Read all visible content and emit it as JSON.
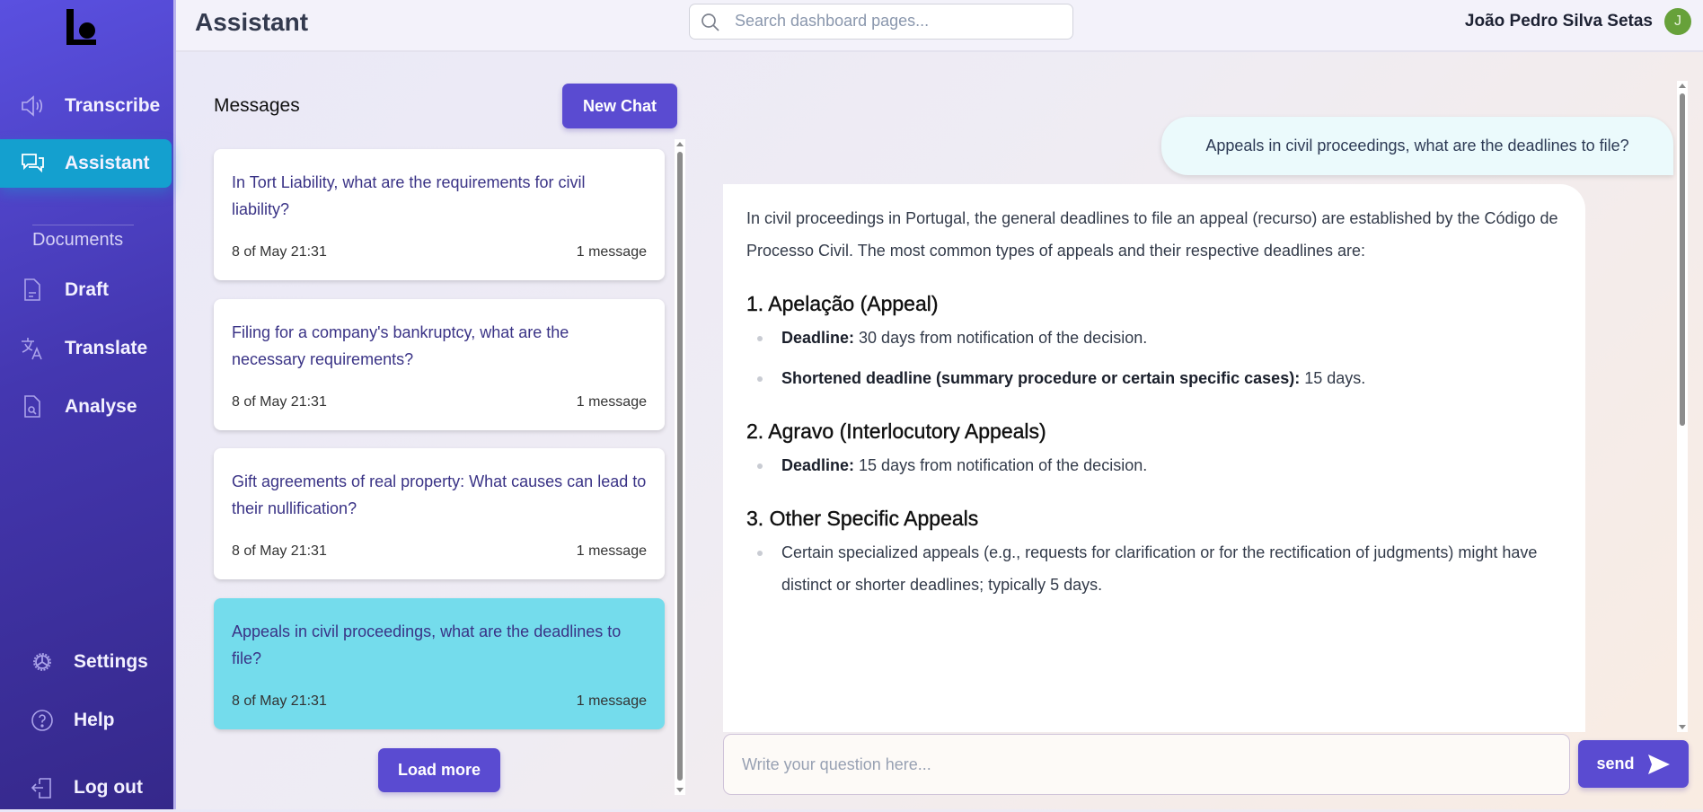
{
  "sidebar": {
    "logo": "lo",
    "items": [
      {
        "label": "Transcribe",
        "icon": "speaker-icon"
      },
      {
        "label": "Assistant",
        "icon": "chat-bubbles-icon",
        "active": true
      },
      {
        "label": "Draft",
        "icon": "document-icon"
      },
      {
        "label": "Translate",
        "icon": "translate-icon"
      },
      {
        "label": "Analyse",
        "icon": "document-search-icon"
      }
    ],
    "section_label": "Documents",
    "bottom": [
      {
        "label": "Settings",
        "icon": "gear-icon"
      },
      {
        "label": "Help",
        "icon": "help-circle-icon"
      },
      {
        "label": "Log out",
        "icon": "logout-icon"
      }
    ]
  },
  "header": {
    "title": "Assistant",
    "search_placeholder": "Search dashboard pages...",
    "user_name": "João Pedro Silva Setas",
    "avatar_initial": "J",
    "avatar_color": "#67a13a"
  },
  "messages": {
    "title": "Messages",
    "new_chat": "New Chat",
    "load_more": "Load more",
    "items": [
      {
        "question": "In Tort Liability, what are the requirements for civil liability?",
        "date": "8 of May 21:31",
        "count": "1 message"
      },
      {
        "question": "Filing for a company's bankruptcy, what are the necessary requirements?",
        "date": "8 of May 21:31",
        "count": "1 message"
      },
      {
        "question": "Gift agreements of real property: What causes can lead to their nullification?",
        "date": "8 of May 21:31",
        "count": "1 message"
      },
      {
        "question": "Appeals in civil proceedings, what are the deadlines to file?",
        "date": "8 of May 21:31",
        "count": "1 message",
        "selected": true
      }
    ]
  },
  "chat": {
    "user_message": "Appeals in civil proceedings, what are the deadlines to file?",
    "answer": {
      "intro": "In civil proceedings in Portugal, the general deadlines to file an appeal (recurso) are established by the Código de Processo Civil. The most common types of appeals and their respective deadlines are:",
      "s1_title": "1. Apelação (Appeal)",
      "s1_b1_label": "Deadline:",
      "s1_b1_text": " 30 days from notification of the decision.",
      "s1_b2_label": "Shortened deadline (summary procedure or certain specific cases):",
      "s1_b2_text": " 15 days.",
      "s2_title": "2. Agravo (Interlocutory Appeals)",
      "s2_b1_label": "Deadline:",
      "s2_b1_text": " 15 days from notification of the decision.",
      "s3_title": "3. Other Specific Appeals",
      "s3_b1_text": "Certain specialized appeals (e.g., requests for clarification or for the rectification of judgments) might have distinct or shorter deadlines; typically 5 days."
    },
    "input_placeholder": "Write your question here...",
    "send_label": "send"
  },
  "colors": {
    "accent": "#5a4bd1",
    "active_nav": "#14a0cf",
    "selected_card": "#74dcec"
  }
}
